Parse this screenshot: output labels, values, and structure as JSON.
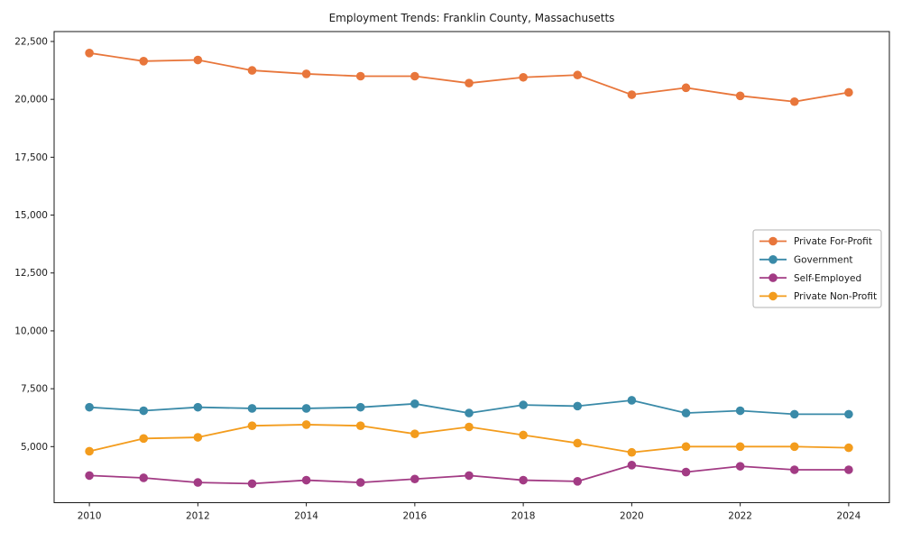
{
  "chart_data": {
    "type": "line",
    "title": "Employment Trends: Franklin County, Massachusetts",
    "xlabel": "",
    "ylabel": "",
    "grid": false,
    "legend_position": "center right",
    "x": [
      2010,
      2011,
      2012,
      2013,
      2014,
      2015,
      2016,
      2017,
      2018,
      2019,
      2020,
      2021,
      2022,
      2023,
      2024
    ],
    "x_tick_values": [
      2010,
      2012,
      2014,
      2016,
      2018,
      2020,
      2022,
      2024
    ],
    "y_tick_values": [
      5000,
      7500,
      10000,
      12500,
      15000,
      17500,
      20000,
      22500
    ],
    "xlim": [
      2009.35,
      2024.75
    ],
    "ylim": [
      2578,
      22928
    ],
    "series": [
      {
        "name": "Private For-Profit",
        "color": "#e8763b",
        "values": [
          22000,
          21650,
          21700,
          21250,
          21100,
          21000,
          21000,
          20700,
          20950,
          21050,
          20200,
          20500,
          20150,
          19900,
          20300
        ]
      },
      {
        "name": "Government",
        "color": "#3a8aa8",
        "values": [
          6700,
          6550,
          6700,
          6650,
          6650,
          6700,
          6850,
          6450,
          6800,
          6750,
          7000,
          6450,
          6550,
          6400,
          6400
        ]
      },
      {
        "name": "Self-Employed",
        "color": "#a23b84",
        "values": [
          3750,
          3650,
          3450,
          3400,
          3550,
          3450,
          3600,
          3750,
          3550,
          3500,
          4200,
          3900,
          4150,
          4000,
          4000
        ]
      },
      {
        "name": "Private Non-Profit",
        "color": "#f39c1d",
        "values": [
          4800,
          5350,
          5400,
          5900,
          5950,
          5900,
          5550,
          5850,
          5500,
          5150,
          4750,
          5000,
          5000,
          5000,
          4950
        ]
      }
    ],
    "axes": {
      "spine_color": "#1a1a1a",
      "legend_border_color": "#b0b0b0",
      "legend_background": "#ffffff"
    }
  }
}
